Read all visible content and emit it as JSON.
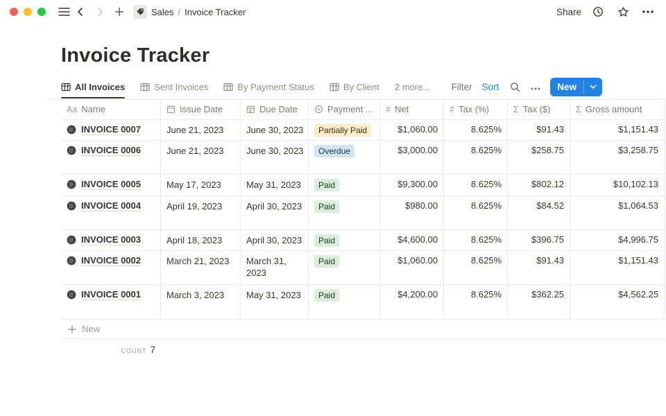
{
  "window": {
    "breadcrumb": {
      "section": "Sales",
      "separator": "/",
      "page": "Invoice Tracker"
    },
    "share_label": "Share"
  },
  "page": {
    "title": "Invoice Tracker"
  },
  "views": {
    "tabs": [
      {
        "label": "All Invoices",
        "active": true
      },
      {
        "label": "Sent Invoices",
        "active": false
      },
      {
        "label": "By Payment Status",
        "active": false
      },
      {
        "label": "By Client",
        "active": false
      }
    ],
    "more_label": "2 more...",
    "filter_label": "Filter",
    "sort_label": "Sort",
    "new_button_label": "New"
  },
  "table": {
    "columns": [
      {
        "icon": "title-icon",
        "label": "Name"
      },
      {
        "icon": "calendar-icon",
        "label": "Issue Date"
      },
      {
        "icon": "calendar-icon",
        "label": "Due Date"
      },
      {
        "icon": "select-icon",
        "label": "Payment ..."
      },
      {
        "icon": "number-icon",
        "label": "Net"
      },
      {
        "icon": "number-icon",
        "label": "Tax (%)"
      },
      {
        "icon": "formula-icon",
        "label": "Tax ($)"
      },
      {
        "icon": "formula-icon",
        "label": "Gross amount"
      }
    ],
    "rows": [
      {
        "name": "INVOICE 0007",
        "issue_date": "June 21, 2023",
        "due_date": "June 30, 2023",
        "status": "Partially Paid",
        "status_color": "yellow",
        "net": "$1,060.00",
        "tax_pct": "8.625%",
        "tax_usd": "$91.43",
        "gross": "$1,151.43"
      },
      {
        "name": "INVOICE 0006",
        "issue_date": "June 21, 2023",
        "due_date": "June 30, 2023",
        "status": "Overdue",
        "status_color": "blue",
        "net": "$3,000.00",
        "tax_pct": "8.625%",
        "tax_usd": "$258.75",
        "gross": "$3,258.75"
      },
      {
        "name": "INVOICE 0005",
        "issue_date": "May 17, 2023",
        "due_date": "May 31, 2023",
        "status": "Paid",
        "status_color": "green",
        "net": "$9,300.00",
        "tax_pct": "8.625%",
        "tax_usd": "$802.12",
        "gross": "$10,102.13"
      },
      {
        "name": "INVOICE 0004",
        "issue_date": "April 19, 2023",
        "due_date": "April 30, 2023",
        "status": "Paid",
        "status_color": "green",
        "net": "$980.00",
        "tax_pct": "8.625%",
        "tax_usd": "$84.52",
        "gross": "$1,064.53"
      },
      {
        "name": "INVOICE 0003",
        "issue_date": "April 18, 2023",
        "due_date": "April 30, 2023",
        "status": "Paid",
        "status_color": "green",
        "net": "$4,600.00",
        "tax_pct": "8.625%",
        "tax_usd": "$396.75",
        "gross": "$4,996.75"
      },
      {
        "name": "INVOICE 0002",
        "issue_date": "March 21, 2023",
        "due_date": "March 31, 2023",
        "status": "Paid",
        "status_color": "green",
        "net": "$1,060.00",
        "tax_pct": "8.625%",
        "tax_usd": "$91.43",
        "gross": "$1,151.43"
      },
      {
        "name": "INVOICE 0001",
        "issue_date": "March 3, 2023",
        "due_date": "May 31, 2023",
        "status": "Paid",
        "status_color": "green",
        "net": "$4,200.00",
        "tax_pct": "8.625%",
        "tax_usd": "$362.25",
        "gross": "$4,562.25"
      }
    ],
    "new_row_label": "New",
    "count_label": "COUNT",
    "count_value": "7"
  },
  "colors": {
    "accent_blue": "#2383e2",
    "badge_yellow_bg": "#fdecc8",
    "badge_blue_bg": "#d3e5ef",
    "badge_green_bg": "#dbeddb",
    "border": "#e9e9e7",
    "text_dark": "#37352f",
    "text_gray": "#787774"
  }
}
